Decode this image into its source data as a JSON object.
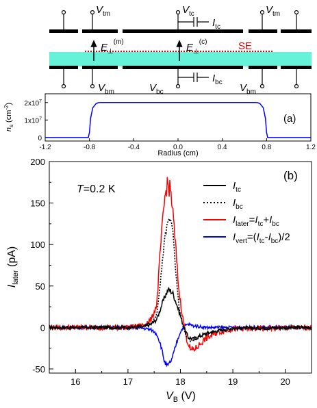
{
  "panel_a": {
    "schematic": {
      "top_labels": {
        "vtm_left": "V",
        "vtm_left_sub": "tm",
        "vtc": "V",
        "vtc_sub": "tc",
        "itc": "I",
        "itc_sub": "tc",
        "vtm_right": "V",
        "vtm_right_sub": "tm"
      },
      "bottom_labels": {
        "vbm_left": "V",
        "vbm_left_sub": "bm",
        "vbc": "V",
        "vbc_sub": "bc",
        "ibc": "I",
        "ibc_sub": "bc",
        "vbm_right": "V",
        "vbm_right_sub": "bm"
      },
      "field_m": {
        "base": "E",
        "sub": "⊥",
        "sup": "(m)"
      },
      "field_c": {
        "base": "E",
        "sub": "⊥",
        "sup": "(c)"
      },
      "se_label": "SE",
      "colors": {
        "helium": "#66f2d9",
        "se_line": "#cc0000",
        "electrode": "#000000"
      }
    },
    "label": "(a)",
    "xlabel": "Radius (cm)",
    "ylabel_main": "n",
    "ylabel_sub": "s",
    "ylabel_unit": " (cm",
    "ylabel_unit_sup": "-2",
    "ylabel_close": ")",
    "yticks": [
      {
        "value": 0,
        "label": "0"
      },
      {
        "value": 10000000,
        "label": "1x10",
        "sup": "7"
      },
      {
        "value": 20000000,
        "label": "2x10",
        "sup": "7"
      }
    ],
    "xticks": [
      "-1.2",
      "-0.8",
      "-0.4",
      "0.0",
      "0.4",
      "0.8",
      "1.2"
    ]
  },
  "panel_b": {
    "label": "(b)",
    "temperature": {
      "var": "T",
      "value": "=0.2 K"
    },
    "xlabel": {
      "var": "V",
      "sub": "B",
      "unit": " (V)"
    },
    "ylabel": {
      "var": "I",
      "sub": "later",
      "unit": " (pA)"
    },
    "xticks": [
      "16",
      "17",
      "18",
      "19",
      "20"
    ],
    "yticks": [
      "-50",
      "0",
      "50",
      "100",
      "150",
      "200"
    ],
    "legend": [
      {
        "var": "I",
        "sub": "tc",
        "rest": ""
      },
      {
        "var": "I",
        "sub": "bc",
        "rest": ""
      },
      {
        "var": "I",
        "sub": "later",
        "rest": "=I_tc+I_bc"
      },
      {
        "var": "I",
        "sub": "vert",
        "rest": "=(I_tc-I_bc)/2"
      }
    ]
  },
  "chart_data": [
    {
      "type": "line",
      "xlabel": "Radius (cm)",
      "ylabel": "n_s (cm^-2)",
      "xlim": [
        -1.2,
        1.2
      ],
      "ylim": [
        -2000000,
        25000000
      ],
      "series": [
        {
          "color": "#0000ff",
          "x": [
            -1.2,
            -0.81,
            -0.8,
            -0.79,
            -0.77,
            -0.74,
            -0.72,
            -0.7,
            0.7,
            0.72,
            0.74,
            0.77,
            0.79,
            0.8,
            0.81,
            1.2
          ],
          "y": [
            0,
            0,
            3000000,
            11000000,
            17000000,
            19400000,
            19900000,
            20000000,
            20000000,
            19900000,
            19400000,
            17000000,
            11000000,
            3000000,
            0,
            0
          ]
        }
      ]
    },
    {
      "type": "line",
      "xlabel": "V_B (V)",
      "ylabel": "I_later (pA)",
      "xlim": [
        15.5,
        20.5
      ],
      "ylim": [
        -55,
        200
      ],
      "series": [
        {
          "name": "I_tc",
          "color": "#000000",
          "dash": "solid",
          "x": [
            15.5,
            17.0,
            17.3,
            17.45,
            17.55,
            17.65,
            17.72,
            17.78,
            17.85,
            17.92,
            18.0,
            18.08,
            18.15,
            18.25,
            18.35,
            18.5,
            18.7,
            19.0,
            20.5
          ],
          "y": [
            0,
            0,
            1,
            4,
            10,
            28,
            40,
            46,
            42,
            30,
            14,
            -2,
            -12,
            -14,
            -11,
            -7,
            -4,
            -1,
            0
          ]
        },
        {
          "name": "I_bc",
          "color": "#000000",
          "dash": "dotted",
          "x": [
            15.5,
            17.0,
            17.3,
            17.45,
            17.55,
            17.62,
            17.7,
            17.78,
            17.85,
            17.92,
            17.98,
            18.05,
            18.12,
            18.2,
            18.3,
            18.45,
            18.7,
            19.0,
            20.5
          ],
          "y": [
            0,
            0,
            2,
            6,
            15,
            55,
            108,
            134,
            120,
            60,
            20,
            2,
            -12,
            -16,
            -13,
            -8,
            -4,
            -1,
            0
          ]
        },
        {
          "name": "I_later=I_tc+I_bc",
          "color": "#ff0000",
          "dash": "solid",
          "x": [
            15.5,
            17.0,
            17.3,
            17.45,
            17.55,
            17.62,
            17.7,
            17.75,
            17.82,
            17.9,
            17.97,
            18.05,
            18.12,
            18.2,
            18.3,
            18.45,
            18.7,
            19.0,
            20.5
          ],
          "y": [
            0,
            0,
            3,
            10,
            28,
            95,
            155,
            174,
            163,
            105,
            45,
            10,
            -14,
            -28,
            -25,
            -15,
            -6,
            -2,
            0
          ]
        },
        {
          "name": "I_vert=(I_tc-I_bc)/2",
          "color": "#0000ff",
          "dash": "solid",
          "x": [
            15.5,
            17.0,
            17.3,
            17.45,
            17.55,
            17.62,
            17.7,
            17.76,
            17.84,
            17.92,
            18.0,
            18.08,
            18.15,
            18.25,
            18.5,
            20.5
          ],
          "y": [
            0,
            0,
            -1,
            -3,
            -8,
            -20,
            -42,
            -47,
            -38,
            -20,
            -5,
            2,
            4,
            2,
            0,
            0
          ]
        }
      ]
    }
  ]
}
